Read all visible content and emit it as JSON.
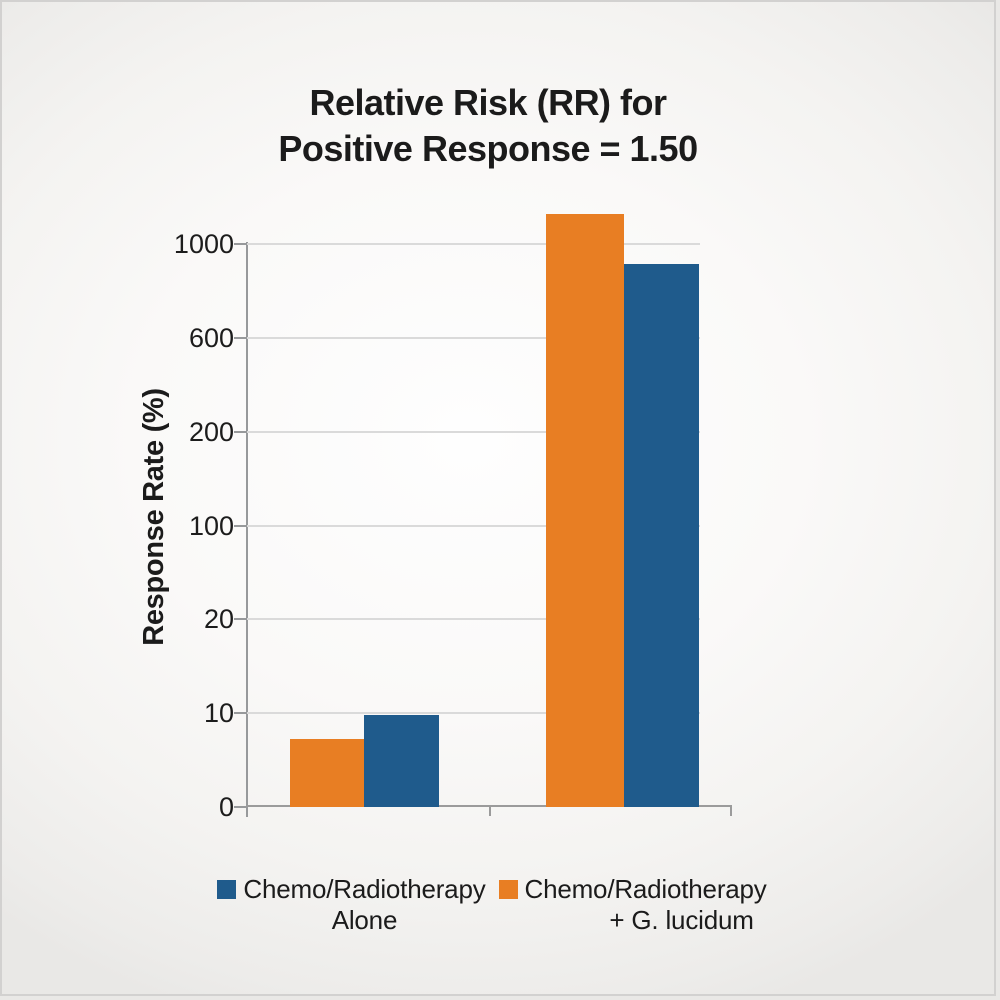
{
  "chart_data": {
    "type": "bar",
    "title": "Relative Risk (RR) for Positive Response = 1.50",
    "title_lines": [
      "Relative Risk (RR) for",
      "Positive Response = 1.50"
    ],
    "ylabel": "Response Rate (%)",
    "xlabel": "",
    "categories": [
      "",
      ""
    ],
    "y_axis": {
      "tick_labels_top_to_bottom": [
        "1000",
        "600",
        "200",
        "100",
        "20",
        "10",
        "0"
      ],
      "tick_values_bottom_to_top": [
        0,
        10,
        20,
        100,
        200,
        600,
        1000
      ],
      "evenly_spaced_nonlinear": true,
      "grid": true
    },
    "series": [
      {
        "name": "Chemo/Radiotherapy + G. lucidum",
        "color": "#E87E23",
        "values": [
          7.3,
          1130
        ]
      },
      {
        "name": "Chemo/Radiotherapy Alone",
        "color": "#1F5B8C",
        "values": [
          9.8,
          915
        ]
      }
    ],
    "legend": {
      "position": "bottom",
      "items": [
        {
          "swatch_color": "#1F5B8C",
          "line1": "Chemo/Radiotherapy",
          "line2": "Alone"
        },
        {
          "swatch_color": "#E87E23",
          "line1": "Chemo/Radiotherapy",
          "line2": "+ G. lucidum"
        }
      ]
    },
    "colors": {
      "grid": "#dadada",
      "axis": "#97999b",
      "text": "#1b1b1b",
      "background": "#f4f3f1"
    }
  }
}
